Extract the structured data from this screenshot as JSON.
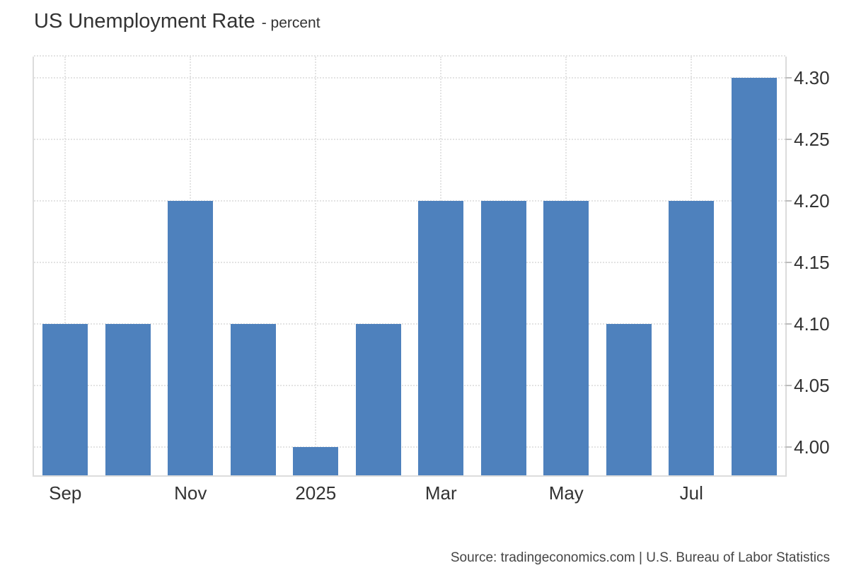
{
  "chart_data": {
    "type": "bar",
    "title": "US Unemployment Rate",
    "subtitle": "- percent",
    "source": "Source: tradingeconomics.com | U.S. Bureau of Labor Statistics",
    "values": [
      4.1,
      4.1,
      4.2,
      4.1,
      4.0,
      4.1,
      4.2,
      4.2,
      4.2,
      4.1,
      4.2,
      4.3
    ],
    "x_ticks": [
      {
        "index": 0,
        "label": "Sep"
      },
      {
        "index": 2,
        "label": "Nov"
      },
      {
        "index": 4,
        "label": "2025"
      },
      {
        "index": 6,
        "label": "Mar"
      },
      {
        "index": 8,
        "label": "May"
      },
      {
        "index": 10,
        "label": "Jul"
      }
    ],
    "y_ticks": [
      {
        "value": 4.0,
        "label": "4.00"
      },
      {
        "value": 4.05,
        "label": "4.05"
      },
      {
        "value": 4.1,
        "label": "4.10"
      },
      {
        "value": 4.15,
        "label": "4.15"
      },
      {
        "value": 4.2,
        "label": "4.20"
      },
      {
        "value": 4.25,
        "label": "4.25"
      },
      {
        "value": 4.3,
        "label": "4.30"
      }
    ],
    "ylim": [
      3.977,
      4.317
    ],
    "grid": true,
    "grid_style": "dotted",
    "legend": "none",
    "y_axis_side": "right",
    "colors": {
      "bar": "#4e81bd",
      "grid": "#e3e3e3",
      "axis": "#dcdcdc",
      "text": "#333333",
      "source_text": "#454545",
      "background": "#ffffff"
    }
  }
}
